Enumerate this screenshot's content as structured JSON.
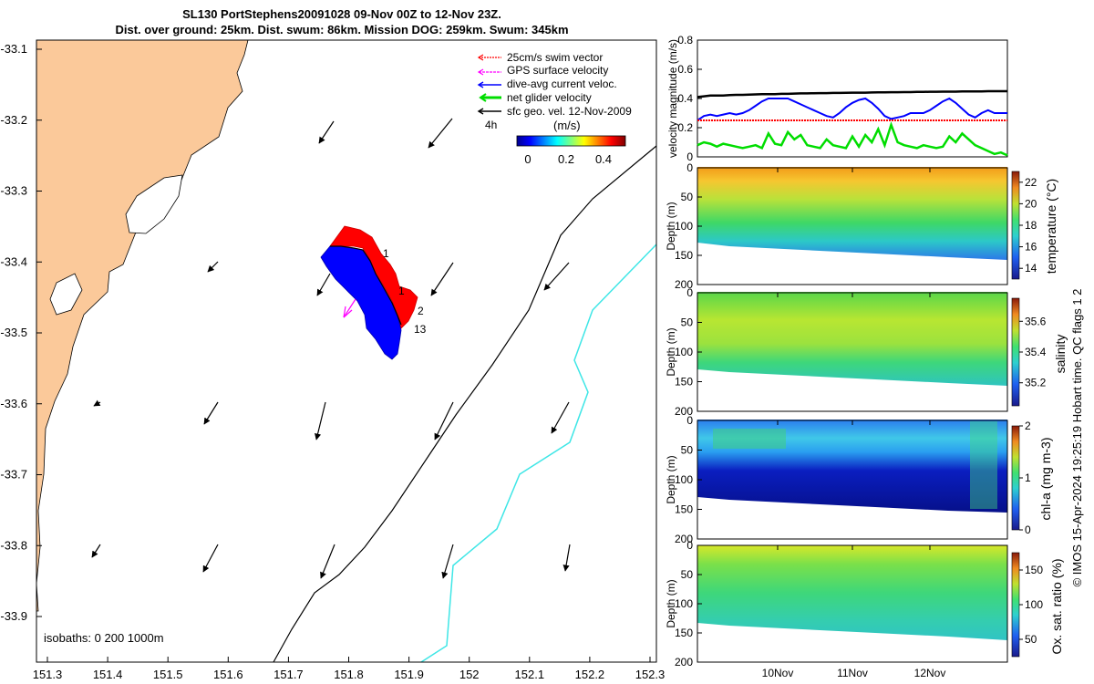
{
  "title_line1": "SL130 PortStephens20091028 09-Nov 00Z to 12-Nov 23Z.",
  "title_line2": "Dist. over ground: 25km. Dist. swum: 86km. Mission DOG: 259km. Swum: 345km",
  "side_text": "© IMOS 15-Apr-2024 19:25:19 Hobart time. QC flags 1  2",
  "colors": {
    "land": "#fbc99a",
    "track_red": "#ff0000",
    "track_blue": "#0000ff",
    "isobath_200": "#000000",
    "isobath_1000": "#3ee6e6",
    "swim_vector": "#ff0000",
    "gps_velocity": "#ff00ff",
    "dive_avg": "#0000ff",
    "net_glider": "#00dd00",
    "sfc_geo": "#000000"
  },
  "map": {
    "xticks": [
      "151.3",
      "151.4",
      "151.5",
      "151.6",
      "151.7",
      "151.8",
      "151.9",
      "152",
      "152.1",
      "152.2",
      "152.3"
    ],
    "yticks": [
      "-33.1",
      "-33.2",
      "-33.3",
      "-33.4",
      "-33.5",
      "-33.6",
      "-33.7",
      "-33.8",
      "-33.9"
    ],
    "legend": [
      {
        "label": "25cm/s swim vector",
        "icon": "swim-vector-icon"
      },
      {
        "label": "GPS surface velocity",
        "icon": "gps-velocity-icon"
      },
      {
        "label": "dive-avg current veloc.",
        "icon": "dive-avg-icon"
      },
      {
        "label": "net glider velocity",
        "icon": "net-glider-icon"
      },
      {
        "label": "sfc geo. vel. 12-Nov-2009",
        "icon": "sfc-geo-icon"
      }
    ],
    "legend_4h": "4h",
    "colorbar_label": "(m/s)",
    "colorbar_ticks": [
      "0",
      "0.2",
      "0.4"
    ],
    "track_labels": [
      "1",
      "1",
      "2",
      "13"
    ],
    "isobaths_label": "isobaths: 0   200  1000m"
  },
  "chart_data": [
    {
      "type": "line",
      "ylabel": "velocity magnitude (m/s)",
      "ylim": [
        0,
        0.8
      ],
      "yticks": [
        "0",
        "0.2",
        "0.4",
        "0.6",
        "0.8"
      ],
      "x": [
        0,
        1,
        2,
        3,
        4,
        5,
        6,
        7,
        8,
        9,
        10,
        11,
        12,
        13,
        14,
        15,
        16,
        17,
        18,
        19,
        20,
        21,
        22,
        23,
        24,
        25,
        26,
        27,
        28,
        29,
        30,
        31,
        32,
        33,
        34,
        35,
        36,
        37,
        38,
        39,
        40,
        41,
        42,
        43,
        44,
        45,
        46,
        47,
        48
      ],
      "series": [
        {
          "color": "#000000",
          "values": [
            0.41,
            0.415,
            0.42,
            0.42,
            0.42,
            0.423,
            0.425,
            0.425,
            0.427,
            0.428,
            0.43,
            0.43,
            0.43,
            0.432,
            0.432,
            0.434,
            0.435,
            0.435,
            0.436,
            0.437,
            0.437,
            0.438,
            0.438,
            0.439,
            0.44,
            0.44,
            0.44,
            0.441,
            0.442,
            0.442,
            0.443,
            0.443,
            0.444,
            0.444,
            0.445,
            0.445,
            0.446,
            0.446,
            0.447,
            0.447,
            0.447,
            0.448,
            0.448,
            0.449,
            0.449,
            0.45,
            0.45,
            0.45,
            0.45
          ]
        },
        {
          "color": "#0000ff",
          "values": [
            0.25,
            0.28,
            0.29,
            0.28,
            0.29,
            0.3,
            0.29,
            0.3,
            0.32,
            0.35,
            0.38,
            0.4,
            0.4,
            0.4,
            0.4,
            0.38,
            0.36,
            0.34,
            0.32,
            0.3,
            0.28,
            0.27,
            0.3,
            0.34,
            0.37,
            0.39,
            0.4,
            0.37,
            0.33,
            0.28,
            0.26,
            0.27,
            0.28,
            0.3,
            0.3,
            0.3,
            0.32,
            0.35,
            0.38,
            0.4,
            0.37,
            0.33,
            0.29,
            0.27,
            0.3,
            0.32,
            0.3,
            0.3,
            0.3
          ]
        },
        {
          "color": "#ff0000",
          "values": [
            0.25,
            0.25,
            0.25,
            0.25,
            0.25,
            0.25,
            0.25,
            0.25,
            0.25,
            0.25,
            0.25,
            0.25,
            0.25,
            0.25,
            0.25,
            0.25,
            0.25,
            0.25,
            0.25,
            0.25,
            0.25,
            0.25,
            0.25,
            0.25,
            0.25,
            0.25,
            0.25,
            0.25,
            0.25,
            0.25,
            0.25,
            0.25,
            0.25,
            0.25,
            0.25,
            0.25,
            0.25,
            0.25,
            0.25,
            0.25,
            0.25,
            0.25,
            0.25,
            0.25,
            0.25,
            0.25,
            0.25,
            0.25,
            0.25
          ]
        },
        {
          "color": "#00dd00",
          "values": [
            0.08,
            0.1,
            0.09,
            0.07,
            0.09,
            0.08,
            0.07,
            0.06,
            0.07,
            0.08,
            0.06,
            0.16,
            0.09,
            0.08,
            0.17,
            0.12,
            0.15,
            0.08,
            0.07,
            0.06,
            0.12,
            0.08,
            0.07,
            0.06,
            0.14,
            0.07,
            0.15,
            0.1,
            0.19,
            0.08,
            0.22,
            0.1,
            0.08,
            0.07,
            0.06,
            0.08,
            0.07,
            0.06,
            0.07,
            0.14,
            0.1,
            0.16,
            0.12,
            0.08,
            0.06,
            0.04,
            0.02,
            0.03,
            0.01
          ]
        }
      ]
    }
  ],
  "profiles": [
    {
      "ylabel": "Depth (m)",
      "cbar_label": "temperature (°C)",
      "cbar_ticks": [
        "14",
        "16",
        "18",
        "20",
        "22"
      ]
    },
    {
      "ylabel": "Depth (m)",
      "cbar_label": "salinity",
      "cbar_ticks": [
        "35.2",
        "35.4",
        "35.6"
      ]
    },
    {
      "ylabel": "Depth (m)",
      "cbar_label": "chl-a (mg m-3)",
      "cbar_ticks": [
        "0",
        "1",
        "2"
      ]
    },
    {
      "ylabel": "Depth (m)",
      "cbar_label": "Ox. sat. ratio (%)",
      "cbar_ticks": [
        "50",
        "100",
        "150"
      ]
    }
  ],
  "depth_ticks": [
    "0",
    "50",
    "100",
    "150",
    "200"
  ],
  "time_ticks": [
    "10Nov",
    "11Nov",
    "12Nov"
  ]
}
